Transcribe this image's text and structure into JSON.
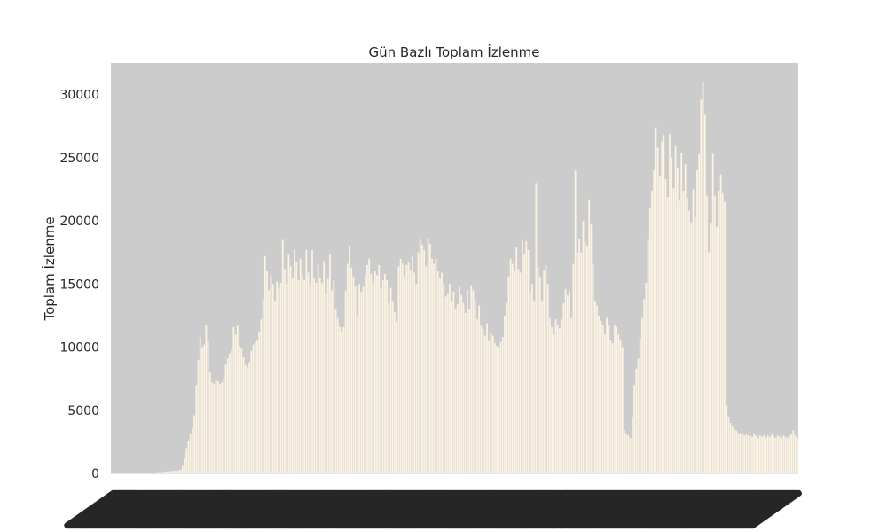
{
  "chart_data": {
    "type": "bar",
    "title": "Gün Bazlı Toplam İzlenme",
    "xlabel": "",
    "ylabel": "Toplam İzlenme",
    "ylim": [
      0,
      32500
    ],
    "yticks": [
      0,
      5000,
      10000,
      15000,
      20000,
      25000,
      30000
    ],
    "grid": false,
    "legend": "none",
    "x_tick_labels_legible": false,
    "category_count": 350,
    "bar_color": "#fdf3e3",
    "plot_background": "#cccccc",
    "text_color": "#262626",
    "values": [
      10,
      10,
      10,
      10,
      10,
      15,
      15,
      15,
      15,
      15,
      20,
      20,
      20,
      25,
      25,
      30,
      30,
      30,
      40,
      40,
      50,
      50,
      60,
      80,
      100,
      100,
      120,
      130,
      150,
      150,
      180,
      200,
      200,
      200,
      250,
      300,
      600,
      1200,
      2000,
      2600,
      3100,
      3600,
      4600,
      7000,
      9000,
      10800,
      10000,
      10200,
      11800,
      10500,
      8000,
      7200,
      7100,
      7400,
      7300,
      7100,
      7200,
      7500,
      8600,
      9100,
      9500,
      9800,
      11600,
      11000,
      11700,
      10100,
      9900,
      9200,
      8600,
      8400,
      8800,
      9700,
      10200,
      10400,
      10500,
      11200,
      12200,
      13800,
      17200,
      16000,
      14500,
      15700,
      15000,
      13700,
      15200,
      14700,
      15100,
      18500,
      16200,
      15000,
      17400,
      16400,
      15500,
      17700,
      16700,
      15300,
      17000,
      15700,
      15300,
      17700,
      15900,
      15000,
      17700,
      15500,
      15100,
      16500,
      15500,
      15100,
      16800,
      14200,
      15400,
      17400,
      14500,
      15300,
      13000,
      12300,
      11600,
      11200,
      11600,
      14500,
      16600,
      18000,
      16300,
      15600,
      14800,
      12500,
      15000,
      14400,
      14800,
      15700,
      16500,
      17000,
      15800,
      15100,
      16000,
      15700,
      16500,
      14700,
      15300,
      15800,
      15300,
      13500,
      14700,
      13600,
      12800,
      12000,
      16400,
      17000,
      16600,
      15600,
      16500,
      16700,
      16100,
      17200,
      15900,
      15000,
      17500,
      18600,
      18100,
      17700,
      16400,
      18700,
      18200,
      17000,
      16600,
      17000,
      16000,
      15500,
      15900,
      15000,
      14000,
      14200,
      15000,
      13600,
      14400,
      13000,
      13400,
      14800,
      14100,
      13500,
      12700,
      14500,
      13000,
      14900,
      14500,
      13700,
      12200,
      13300,
      11700,
      11400,
      10900,
      11900,
      10500,
      11100,
      10900,
      10300,
      10100,
      10000,
      10400,
      10800,
      12500,
      13500,
      15600,
      17000,
      16600,
      16000,
      17900,
      16200,
      15900,
      18600,
      17400,
      18400,
      17700,
      14300,
      15000,
      13700,
      23000,
      16300,
      15600,
      13700,
      16100,
      16500,
      15000,
      12300,
      11600,
      11000,
      12200,
      11800,
      11500,
      12200,
      13500,
      14600,
      14100,
      14400,
      12300,
      16600,
      24000,
      17500,
      18600,
      17500,
      20000,
      18300,
      18000,
      21700,
      19700,
      16600,
      13700,
      13300,
      12500,
      12100,
      11800,
      11000,
      12300,
      11700,
      10600,
      10300,
      11800,
      11600,
      11000,
      10500,
      10000,
      3400,
      3100,
      3000,
      2800,
      4500,
      7000,
      8300,
      9100,
      10700,
      12300,
      13800,
      15100,
      18600,
      21000,
      22400,
      24000,
      27400,
      25800,
      23500,
      26300,
      26800,
      23300,
      21900,
      26900,
      25000,
      22600,
      25900,
      24200,
      21600,
      25400,
      22400,
      24500,
      21800,
      20800,
      19800,
      22500,
      20300,
      24000,
      25300,
      29600,
      31000,
      28400,
      22000,
      17500,
      19800,
      25300,
      22000,
      19500,
      22400,
      23700,
      22200,
      21500,
      5400,
      4500,
      4000,
      3700,
      3500,
      3400,
      3200,
      3100,
      3200,
      3000,
      3100,
      3000,
      3000,
      2900,
      3100,
      3000,
      2800,
      3000,
      2900,
      3000,
      2800,
      3000,
      2900,
      3100,
      2900,
      2800,
      3000,
      2900,
      2800,
      3000,
      2900,
      2800,
      3000,
      3100,
      3400,
      3000,
      2800
    ]
  }
}
